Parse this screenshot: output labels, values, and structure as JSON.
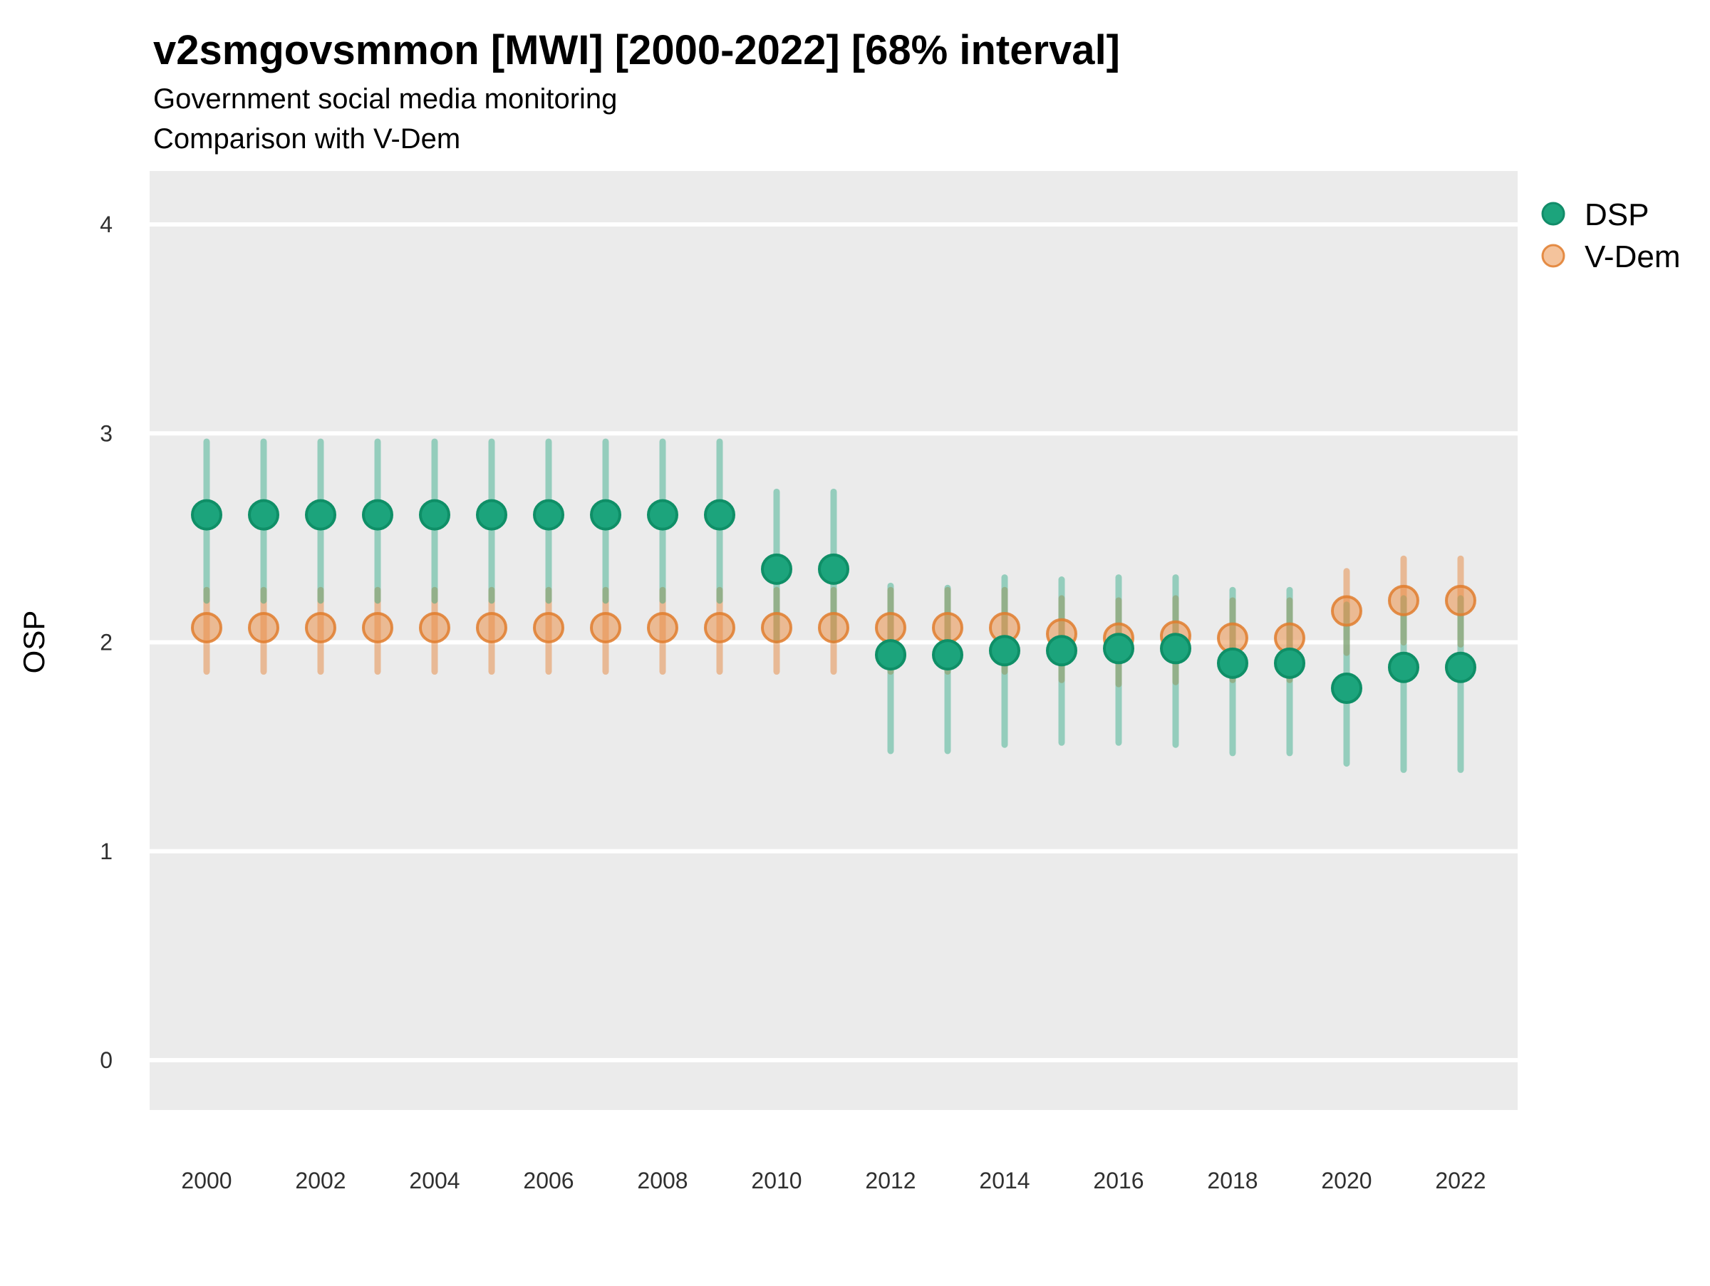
{
  "header": {
    "title": "v2smgovsmmon [MWI] [2000-2022] [68% interval]",
    "subtitle_line1": "Government social media monitoring",
    "subtitle_line2": "Comparison with V-Dem"
  },
  "y_axis": {
    "label": "OSP",
    "ticks": [
      0,
      1,
      2,
      3,
      4
    ]
  },
  "x_axis": {
    "ticks": [
      2000,
      2002,
      2004,
      2006,
      2008,
      2010,
      2012,
      2014,
      2016,
      2018,
      2020,
      2022
    ]
  },
  "legend": {
    "items": [
      {
        "label": "DSP",
        "color": "#1ca47c",
        "stroke": "#128c69"
      },
      {
        "label": "V-Dem",
        "color": "rgba(235,145,75,0.55)",
        "stroke": "rgba(224,125,45,0.85)"
      }
    ]
  },
  "colors": {
    "panel_bg": "#ebebeb",
    "grid": "#ffffff",
    "dsp_point": "#1ca47c",
    "dsp_point_stroke": "#0f8f67",
    "dsp_bar": "rgba(28,164,124,0.42)",
    "vdem_point": "rgba(235,145,75,0.55)",
    "vdem_point_stroke": "rgba(224,125,45,0.85)",
    "vdem_bar": "rgba(231,140,70,0.52)"
  },
  "chart_data": {
    "type": "scatter",
    "subtype": "pointrange",
    "interval_label": "68% interval",
    "title": "v2smgovsmmon [MWI] [2000-2022] [68% interval]",
    "subtitle": "Government social media monitoring — Comparison with V-Dem",
    "xlabel": "",
    "ylabel": "OSP",
    "ylim": [
      -0.24,
      4.26
    ],
    "yticks": [
      0,
      1,
      2,
      3,
      4
    ],
    "xticks": [
      2000,
      2002,
      2004,
      2006,
      2008,
      2010,
      2012,
      2014,
      2016,
      2018,
      2020,
      2022
    ],
    "grid": "horizontal-white-on-gray",
    "legend_position": "right",
    "x": [
      2000,
      2001,
      2002,
      2003,
      2004,
      2005,
      2006,
      2007,
      2008,
      2009,
      2010,
      2011,
      2012,
      2013,
      2014,
      2015,
      2016,
      2017,
      2018,
      2019,
      2020,
      2021,
      2022
    ],
    "series": [
      {
        "name": "DSP",
        "point_color": "#1ca47c",
        "point_stroke": "#0f8f67",
        "bar_color": "rgba(28,164,124,0.42)",
        "est": [
          2.61,
          2.61,
          2.61,
          2.61,
          2.61,
          2.61,
          2.61,
          2.61,
          2.61,
          2.61,
          2.35,
          2.35,
          1.94,
          1.94,
          1.96,
          1.96,
          1.97,
          1.97,
          1.9,
          1.9,
          1.78,
          1.88,
          1.88
        ],
        "lo": [
          2.2,
          2.2,
          2.2,
          2.2,
          2.2,
          2.2,
          2.2,
          2.2,
          2.2,
          2.2,
          2.01,
          2.01,
          1.48,
          1.48,
          1.51,
          1.52,
          1.52,
          1.51,
          1.47,
          1.47,
          1.42,
          1.39,
          1.39
        ],
        "hi": [
          2.96,
          2.96,
          2.96,
          2.96,
          2.96,
          2.96,
          2.96,
          2.96,
          2.96,
          2.96,
          2.72,
          2.72,
          2.27,
          2.26,
          2.31,
          2.3,
          2.31,
          2.31,
          2.25,
          2.25,
          2.18,
          2.21,
          2.21
        ]
      },
      {
        "name": "V-Dem",
        "point_color": "rgba(235,145,75,0.55)",
        "point_stroke": "rgba(224,125,45,0.85)",
        "bar_color": "rgba(231,140,70,0.52)",
        "est": [
          2.07,
          2.07,
          2.07,
          2.07,
          2.07,
          2.07,
          2.07,
          2.07,
          2.07,
          2.07,
          2.07,
          2.07,
          2.07,
          2.07,
          2.07,
          2.04,
          2.02,
          2.03,
          2.02,
          2.02,
          2.15,
          2.2,
          2.2
        ],
        "lo": [
          1.86,
          1.86,
          1.86,
          1.86,
          1.86,
          1.86,
          1.86,
          1.86,
          1.86,
          1.86,
          1.86,
          1.86,
          1.86,
          1.86,
          1.86,
          1.82,
          1.8,
          1.81,
          1.82,
          1.82,
          1.95,
          2.0,
          1.99
        ],
        "hi": [
          2.25,
          2.25,
          2.25,
          2.25,
          2.25,
          2.25,
          2.25,
          2.25,
          2.25,
          2.25,
          2.25,
          2.25,
          2.25,
          2.25,
          2.25,
          2.21,
          2.2,
          2.21,
          2.2,
          2.2,
          2.34,
          2.4,
          2.4
        ]
      }
    ]
  }
}
